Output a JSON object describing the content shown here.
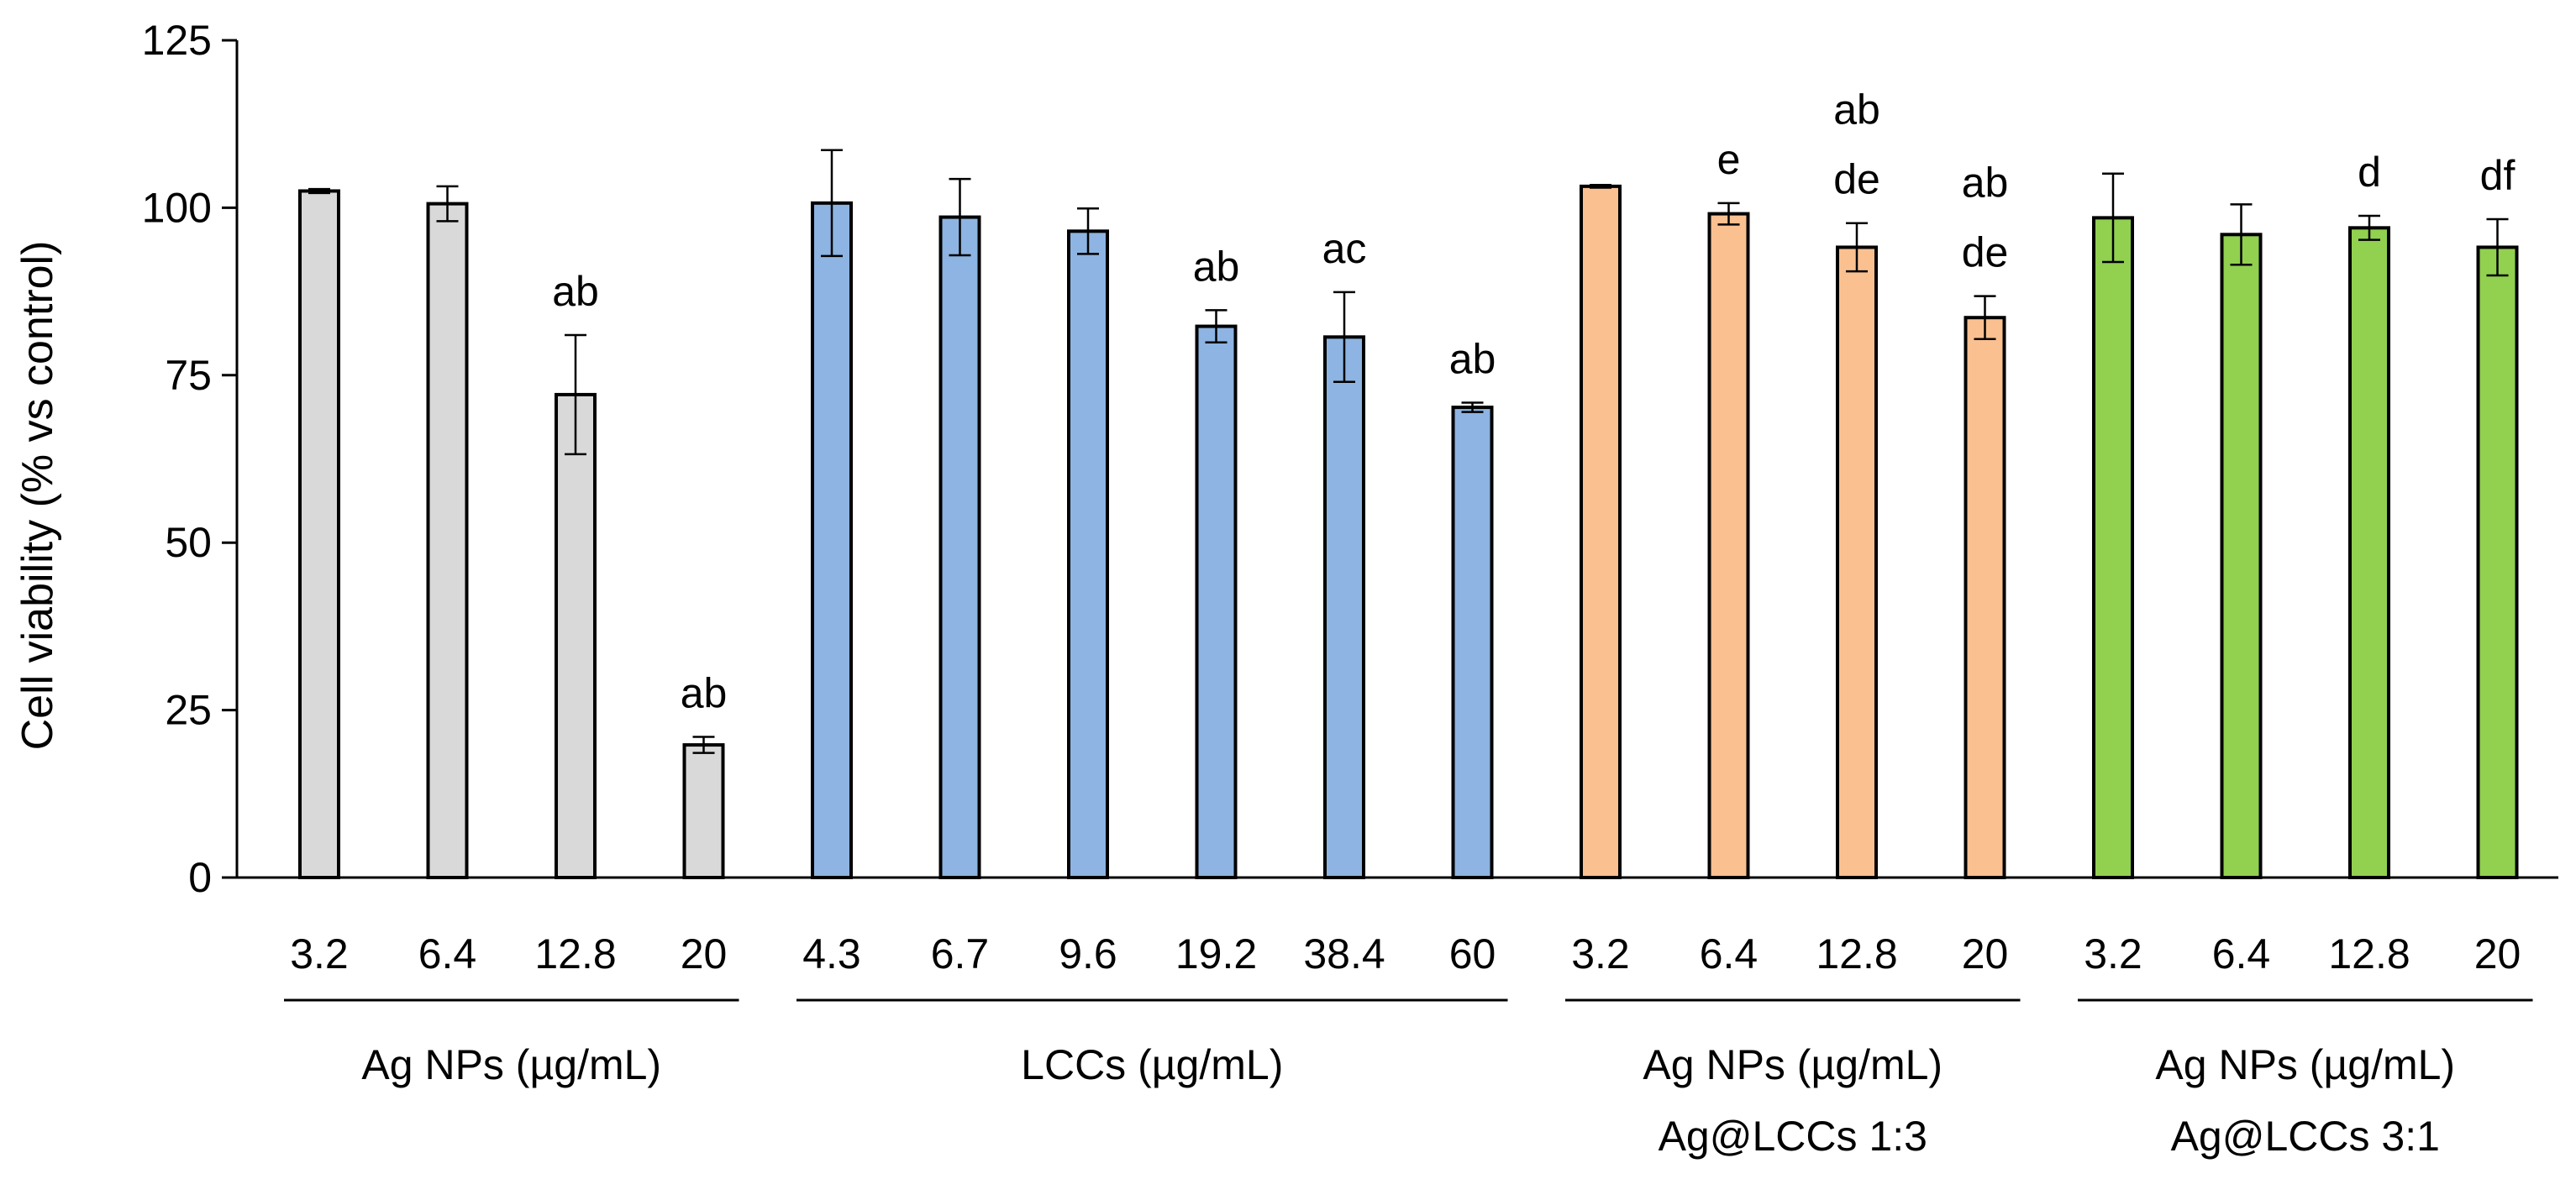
{
  "chart_data": {
    "type": "bar",
    "title": "",
    "ylabel": "Cell viability (% vs control)",
    "xlabel": "",
    "ylim": [
      0,
      125
    ],
    "yticks": [
      0,
      25,
      50,
      75,
      100,
      125
    ],
    "grid": false,
    "groups": [
      {
        "name": "Ag NPs (µg/mL)",
        "name_line2": "",
        "color": "#d9d9d9",
        "bars": [
          {
            "category": "3.2",
            "value": 102.5,
            "error": 0.3,
            "sig": []
          },
          {
            "category": "6.4",
            "value": 100.6,
            "error": 2.6,
            "sig": []
          },
          {
            "category": "12.8",
            "value": 72.1,
            "error": 8.9,
            "sig": [
              "ab"
            ]
          },
          {
            "category": "20",
            "value": 19.8,
            "error": 1.2,
            "sig": [
              "ab"
            ]
          }
        ]
      },
      {
        "name": "LCCs (µg/mL)",
        "name_line2": "",
        "color": "#8db4e2",
        "bars": [
          {
            "category": "4.3",
            "value": 100.7,
            "error": 7.9,
            "sig": []
          },
          {
            "category": "6.7",
            "value": 98.6,
            "error": 5.7,
            "sig": []
          },
          {
            "category": "9.6",
            "value": 96.5,
            "error": 3.4,
            "sig": []
          },
          {
            "category": "19.2",
            "value": 82.3,
            "error": 2.4,
            "sig": [
              "ab"
            ]
          },
          {
            "category": "38.4",
            "value": 80.7,
            "error": 6.7,
            "sig": [
              "ac"
            ]
          },
          {
            "category": "60",
            "value": 70.2,
            "error": 0.7,
            "sig": [
              "ab"
            ]
          }
        ]
      },
      {
        "name": "Ag NPs (µg/mL)",
        "name_line2": "Ag@LCCs 1:3",
        "color": "#fac090",
        "bars": [
          {
            "category": "3.2",
            "value": 103.2,
            "error": 0.2,
            "sig": []
          },
          {
            "category": "6.4",
            "value": 99.1,
            "error": 1.6,
            "sig": [
              "e"
            ]
          },
          {
            "category": "12.8",
            "value": 94.1,
            "error": 3.6,
            "sig": [
              "ab",
              "de"
            ]
          },
          {
            "category": "20",
            "value": 83.6,
            "error": 3.2,
            "sig": [
              "ab",
              "de"
            ]
          }
        ]
      },
      {
        "name": "Ag NPs (µg/mL)",
        "name_line2": "Ag@LCCs 3:1",
        "color": "#92d050",
        "bars": [
          {
            "category": "3.2",
            "value": 98.5,
            "error": 6.6,
            "sig": []
          },
          {
            "category": "6.4",
            "value": 96.0,
            "error": 4.5,
            "sig": []
          },
          {
            "category": "12.8",
            "value": 97.0,
            "error": 1.8,
            "sig": [
              "d"
            ]
          },
          {
            "category": "20",
            "value": 94.1,
            "error": 4.2,
            "sig": [
              "df"
            ]
          }
        ]
      }
    ]
  }
}
